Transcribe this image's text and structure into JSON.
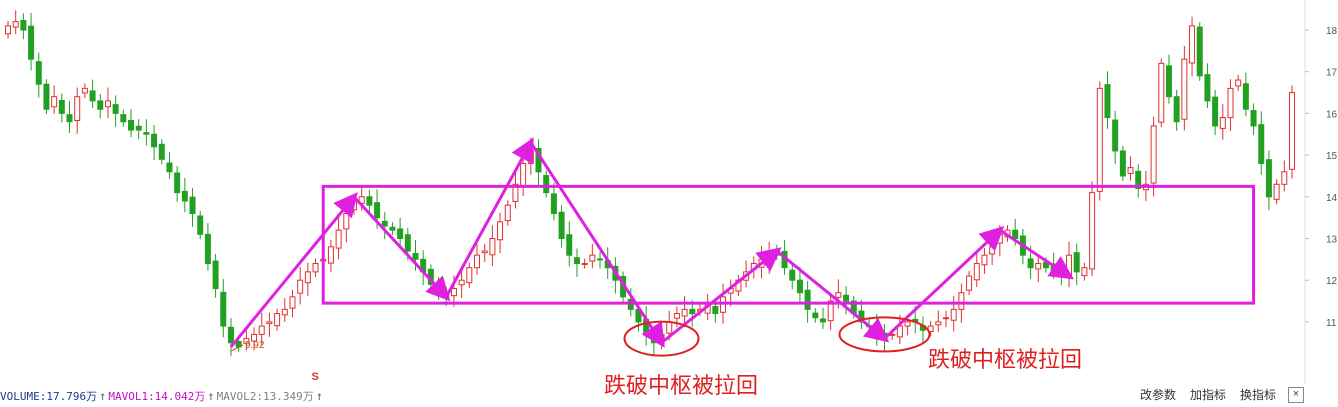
{
  "chart_data": {
    "type": "candlestick",
    "y_ticks": [
      "18",
      "17",
      "16",
      "15",
      "14",
      "13",
      "12",
      "11"
    ],
    "low_label": "9.92",
    "marker_s": "S",
    "zone_box": {
      "x_start_index": 41,
      "x_end_index": 162,
      "y_top": 14.25,
      "y_bottom": 11.45
    },
    "annotations": [
      "跌破中枢被拉回",
      "跌破中枢被拉回"
    ],
    "colors": {
      "up": "#e03030",
      "down": "#22a022",
      "zone": "#e020e0",
      "annot": "#e02020"
    },
    "closes": [
      18.1,
      18.2,
      18.0,
      17.3,
      16.7,
      16.1,
      16.4,
      16.0,
      15.8,
      16.4,
      16.6,
      16.3,
      16.1,
      16.3,
      16.0,
      15.8,
      15.6,
      15.6,
      15.5,
      15.2,
      14.9,
      14.6,
      14.1,
      13.9,
      13.6,
      13.1,
      12.4,
      11.8,
      10.9,
      10.5,
      10.4,
      10.6,
      10.7,
      10.9,
      11.0,
      11.2,
      11.3,
      11.6,
      12.0,
      12.2,
      12.4,
      12.5,
      12.8,
      13.2,
      13.6,
      13.9,
      14.0,
      13.8,
      13.5,
      13.3,
      13.2,
      13.0,
      12.7,
      12.5,
      12.2,
      11.9,
      11.7,
      11.6,
      11.8,
      12.0,
      12.3,
      12.6,
      12.7,
      13.0,
      13.4,
      13.8,
      14.3,
      14.8,
      15.1,
      14.6,
      14.1,
      13.6,
      13.0,
      12.6,
      12.4,
      12.4,
      12.6,
      12.5,
      12.3,
      12.0,
      11.6,
      11.3,
      11.0,
      10.7,
      10.5,
      10.7,
      11.0,
      11.2,
      11.3,
      11.2,
      11.3,
      11.4,
      11.2,
      11.6,
      11.8,
      12.0,
      12.2,
      12.4,
      12.5,
      12.7,
      12.6,
      12.3,
      12.0,
      11.7,
      11.3,
      11.1,
      11.0,
      11.5,
      11.7,
      11.5,
      11.2,
      11.0,
      10.9,
      10.7,
      10.6,
      10.7,
      10.9,
      11.0,
      11.0,
      10.8,
      10.9,
      11.0,
      11.1,
      11.3,
      11.7,
      12.1,
      12.4,
      12.6,
      12.8,
      13.1,
      13.2,
      13.0,
      12.6,
      12.3,
      12.4,
      12.3,
      12.2,
      12.1,
      12.6,
      12.2,
      12.3,
      14.1,
      16.6,
      15.9,
      15.1,
      14.5,
      14.7,
      14.2,
      14.3,
      15.7,
      17.2,
      16.4,
      15.8,
      17.3,
      18.1,
      16.9,
      16.3,
      15.7,
      15.9,
      16.6,
      16.8,
      16.1,
      15.7,
      14.8,
      14.0,
      14.3,
      14.6,
      16.5
    ],
    "legs": [
      {
        "from": [
          29,
          10.4
        ],
        "to": [
          45,
          14.0
        ],
        "thick": true
      },
      {
        "from": [
          45,
          14.0
        ],
        "to": [
          57,
          11.6
        ],
        "thick": true
      },
      {
        "from": [
          57,
          11.6
        ],
        "to": [
          68,
          15.3
        ],
        "thick": true
      },
      {
        "from": [
          68,
          15.3
        ],
        "to": [
          85,
          10.5
        ],
        "thick": true
      },
      {
        "from": [
          85,
          10.5
        ],
        "to": [
          100,
          12.7
        ],
        "thick": true
      },
      {
        "from": [
          100,
          12.7
        ],
        "to": [
          114,
          10.6
        ],
        "thick": true
      },
      {
        "from": [
          114,
          10.6
        ],
        "to": [
          129,
          13.2
        ],
        "thick": true
      },
      {
        "from": [
          129,
          13.2
        ],
        "to": [
          138,
          12.1
        ],
        "thick": true
      },
      {
        "from": [
          45,
          14.0
        ],
        "to": [
          57,
          11.6
        ],
        "thick": false
      },
      {
        "from": [
          68,
          15.3
        ],
        "to": [
          85,
          10.5
        ],
        "thick": false
      },
      {
        "from": [
          100,
          12.7
        ],
        "to": [
          114,
          10.6
        ],
        "thick": false
      },
      {
        "from": [
          129,
          13.2
        ],
        "to": [
          138,
          12.1
        ],
        "thick": false
      }
    ]
  },
  "volume_bar": {
    "vol": "VOLUME:17.796万",
    "ma1": "MAVOL1:14.042万",
    "ma2": "MAVOL2:13.349万",
    "up_arrow": "↑"
  },
  "toolbar": {
    "modify_params": "改参数",
    "add_indicator": "加指标",
    "switch_indicator": "换指标",
    "close": "×"
  }
}
